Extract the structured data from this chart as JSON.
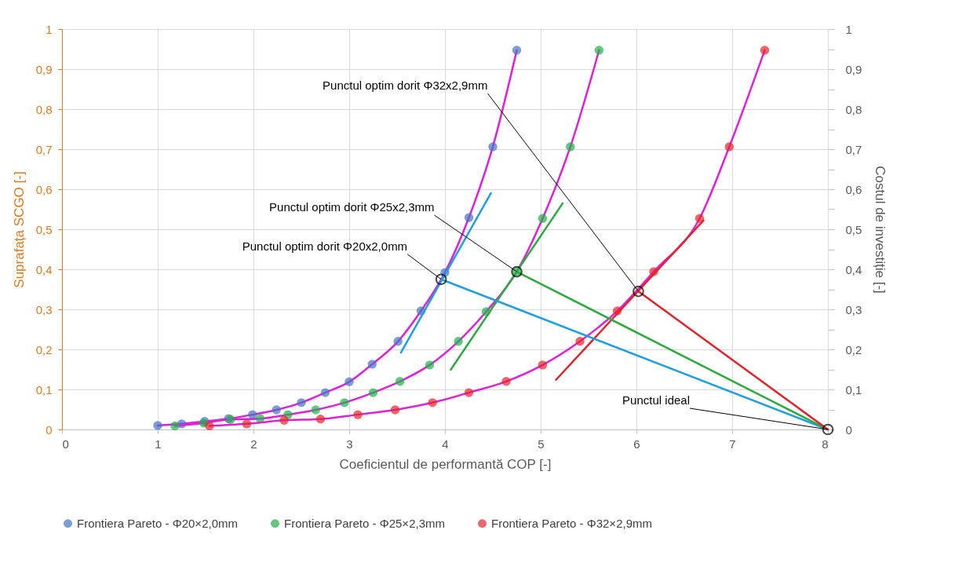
{
  "chart_data": {
    "type": "line",
    "xlabel": "Coeficientul de performantă COP [-]",
    "ylabel": "Suprafața SCGO [-]",
    "y2label": "Costul de investiție [-]",
    "xlim": [
      0,
      8
    ],
    "xticks": [
      0,
      1,
      2,
      3,
      4,
      5,
      6,
      7,
      8
    ],
    "ylim": [
      0,
      1
    ],
    "yticks": [
      {
        "value": 0,
        "label": "0"
      },
      {
        "value": 0.1,
        "label": "0,1"
      },
      {
        "value": 0.2,
        "label": "0,2"
      },
      {
        "value": 0.3,
        "label": "0,3"
      },
      {
        "value": 0.4,
        "label": "0,4"
      },
      {
        "value": 0.5,
        "label": "0,5"
      },
      {
        "value": 0.6,
        "label": "0,6"
      },
      {
        "value": 0.7,
        "label": "0,7"
      },
      {
        "value": 0.8,
        "label": "0,8"
      },
      {
        "value": 0.9,
        "label": "0,9"
      },
      {
        "value": 1,
        "label": "1"
      }
    ],
    "y2lim": [
      0,
      1
    ],
    "y2ticks": [
      {
        "value": 0,
        "label": "0"
      },
      {
        "value": 0.05,
        "label": null
      },
      {
        "value": 0.1,
        "label": "0,1"
      },
      {
        "value": 0.15,
        "label": null
      },
      {
        "value": 0.2,
        "label": "0,2"
      },
      {
        "value": 0.25,
        "label": null
      },
      {
        "value": 0.3,
        "label": "0,3"
      },
      {
        "value": 0.35,
        "label": null
      },
      {
        "value": 0.4,
        "label": "0,4"
      },
      {
        "value": 0.45,
        "label": null
      },
      {
        "value": 0.5,
        "label": "0,5"
      },
      {
        "value": 0.55,
        "label": null
      },
      {
        "value": 0.6,
        "label": "0,6"
      },
      {
        "value": 0.65,
        "label": null
      },
      {
        "value": 0.7,
        "label": "0,7"
      },
      {
        "value": 0.75,
        "label": null
      },
      {
        "value": 0.8,
        "label": "0,8"
      },
      {
        "value": 0.85,
        "label": null
      },
      {
        "value": 0.9,
        "label": "0,9"
      },
      {
        "value": 0.95,
        "label": null
      },
      {
        "value": 1,
        "label": "1"
      }
    ],
    "grid": true,
    "legend": "bottom",
    "series": [
      {
        "name": "Frontiera Pareto - Φ20×2,0mm",
        "marker": "circle",
        "color": "#e020d8",
        "colors": [
          "#4472c4",
          "#4472c4",
          "#4472c4",
          "#4472c4",
          "#4472c4",
          "#4472c4",
          "#4472c4",
          "#4472c4",
          "#4472c4",
          "#4472c4",
          "#4472c4",
          "#4472c4",
          "#4472c4",
          "#4472c4",
          "#4472c4",
          "#4472c4"
        ],
        "x": [
          1.0,
          1.25,
          1.49,
          1.74,
          1.99,
          2.24,
          2.5,
          2.75,
          3.0,
          3.24,
          3.51,
          3.75,
          4.0,
          4.25,
          4.5,
          4.75
        ],
        "values": [
          0.01,
          0.014,
          0.02,
          0.027,
          0.037,
          0.049,
          0.067,
          0.092,
          0.119,
          0.163,
          0.22,
          0.296,
          0.392,
          0.529,
          0.706,
          0.947
        ]
      },
      {
        "name": "Frontiera Pareto - Φ25×2,3mm",
        "marker": "circle",
        "color": "#e020d8",
        "colors": [
          "#1fb04a",
          "#1fb04a",
          "#1fb04a",
          "#1fb04a",
          "#1fb04a",
          "#1fb04a",
          "#1fb04a",
          "#1fb04a",
          "#1fb04a",
          "#1fb04a",
          "#1fb04a",
          "#1fb04a",
          "#1fb04a",
          "#1fb04a",
          "#1fb04a",
          "#1fb04a"
        ],
        "x": [
          1.18,
          1.48,
          1.76,
          2.07,
          2.36,
          2.65,
          2.95,
          3.25,
          3.53,
          3.84,
          4.14,
          4.43,
          4.75,
          5.02,
          5.31,
          5.61
        ],
        "values": [
          0.009,
          0.016,
          0.025,
          0.027,
          0.037,
          0.049,
          0.067,
          0.092,
          0.12,
          0.161,
          0.22,
          0.294,
          0.394,
          0.527,
          0.706,
          0.947
        ]
      },
      {
        "name": "Frontiera Pareto - Φ32×2,9mm",
        "marker": "circle",
        "color": "#e020d8",
        "colors": [
          "#e8242a",
          "#e8242a",
          "#e8242a",
          "#e8242a",
          "#e8242a",
          "#e8242a",
          "#e8242a",
          "#e8242a",
          "#e8242a",
          "#e8242a",
          "#e8242a",
          "#e8242a",
          "#e8242a",
          "#e8242a",
          "#e8242a",
          "#e8242a"
        ],
        "x": [
          1.54,
          1.93,
          2.32,
          2.7,
          3.09,
          3.48,
          3.87,
          4.25,
          4.64,
          5.02,
          5.41,
          5.8,
          6.18,
          6.66,
          6.97,
          7.34
        ],
        "values": [
          0.009,
          0.014,
          0.023,
          0.026,
          0.037,
          0.049,
          0.067,
          0.092,
          0.12,
          0.161,
          0.22,
          0.296,
          0.394,
          0.527,
          0.706,
          0.947
        ]
      },
      {
        "type": "line",
        "color": "#1ea0e0",
        "x": [
          3.54,
          4.48
        ],
        "values": [
          0.192,
          0.59
        ]
      },
      {
        "type": "line",
        "color": "#2eaa40",
        "x": [
          4.06,
          5.23
        ],
        "values": [
          0.149,
          0.565
        ]
      },
      {
        "type": "line",
        "color": "#e0242a",
        "x": [
          5.16,
          6.7
        ],
        "values": [
          0.124,
          0.522
        ]
      },
      {
        "type": "line",
        "color": "#1ea0e0",
        "x": [
          3.96,
          8
        ],
        "values": [
          0.375,
          0
        ]
      },
      {
        "type": "line",
        "color": "#2eaa40",
        "x": [
          4.75,
          8
        ],
        "values": [
          0.394,
          0
        ]
      },
      {
        "type": "line",
        "color": "#e0242a",
        "x": [
          6.02,
          8
        ],
        "values": [
          0.345,
          0
        ]
      },
      {
        "type": "scatter",
        "marker": "circle",
        "color": "#000000",
        "x": [
          3.96,
          4.75,
          6.02,
          8
        ],
        "values": [
          0.375,
          0.394,
          0.345,
          0
        ]
      }
    ],
    "annotations": [
      {
        "text": "Punctul optim dorit Φ20x2,0mm",
        "x": 3.96,
        "y": 0.375
      },
      {
        "text": "Punctul optim dorit Φ25x2,3mm",
        "x": 4.75,
        "y": 0.394
      },
      {
        "text": "Punctul optim dorit Φ32x2,9mm",
        "x": 6.02,
        "y": 0.345
      },
      {
        "text": "Punctul ideal",
        "x": 8,
        "y": 0
      }
    ]
  }
}
